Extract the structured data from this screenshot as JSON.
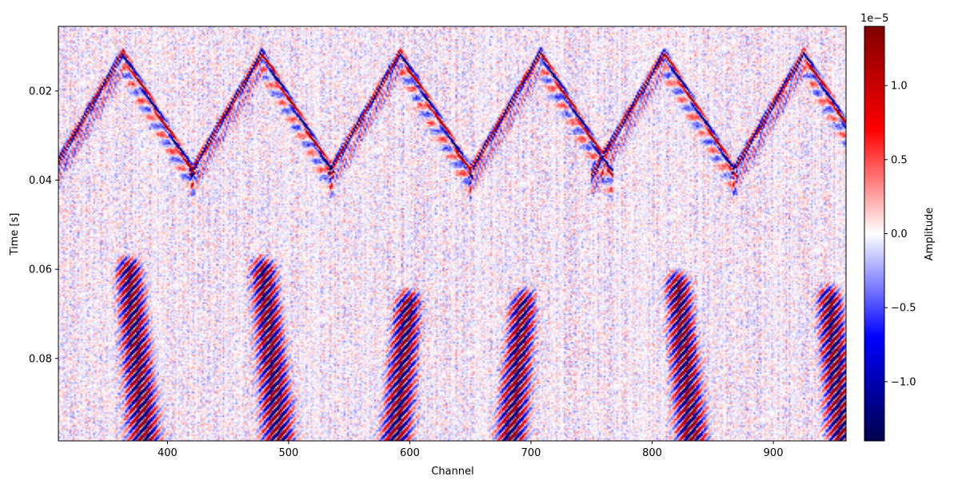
{
  "chart_data": {
    "type": "heatmap",
    "title": "",
    "xlabel": "Channel",
    "ylabel": "Time [s]",
    "xlim": [
      310,
      960
    ],
    "ylim": [
      0.0985,
      0.0055
    ],
    "x_ticks": [
      400,
      500,
      600,
      700,
      800,
      900
    ],
    "y_ticks": [
      0.02,
      0.04,
      0.06,
      0.08
    ],
    "x_tick_labels": [
      "400",
      "500",
      "600",
      "700",
      "800",
      "900"
    ],
    "y_tick_labels": [
      "0.02",
      "0.04",
      "0.06",
      "0.08"
    ],
    "colormap": "seismic",
    "colorbar": {
      "label": "Amplitude",
      "offset_text": "1e−5",
      "range": [
        -1.4,
        1.4
      ],
      "ticks": [
        1.0,
        0.5,
        0.0,
        -0.5,
        -1.0
      ],
      "tick_labels": [
        "1.0",
        "0.5",
        "0.0",
        "−0.5",
        "−1.0"
      ]
    },
    "events": {
      "v_arrivals": [
        {
          "apex_channel": 363,
          "apex_time": 0.0115
        },
        {
          "apex_channel": 478,
          "apex_time": 0.0115
        },
        {
          "apex_channel": 592,
          "apex_time": 0.0115
        },
        {
          "apex_channel": 708,
          "apex_time": 0.0115
        },
        {
          "apex_channel": 810,
          "apex_time": 0.0115
        },
        {
          "apex_channel": 925,
          "apex_time": 0.0115
        }
      ],
      "v_trough_time": 0.0375,
      "late_bursts": [
        {
          "center_channel": 367,
          "top_time": 0.056
        },
        {
          "center_channel": 478,
          "top_time": 0.056
        },
        {
          "center_channel": 600,
          "top_time": 0.0635
        },
        {
          "center_channel": 695,
          "top_time": 0.0635
        },
        {
          "center_channel": 820,
          "top_time": 0.0595
        },
        {
          "center_channel": 945,
          "top_time": 0.0625
        }
      ]
    },
    "grid": false
  }
}
